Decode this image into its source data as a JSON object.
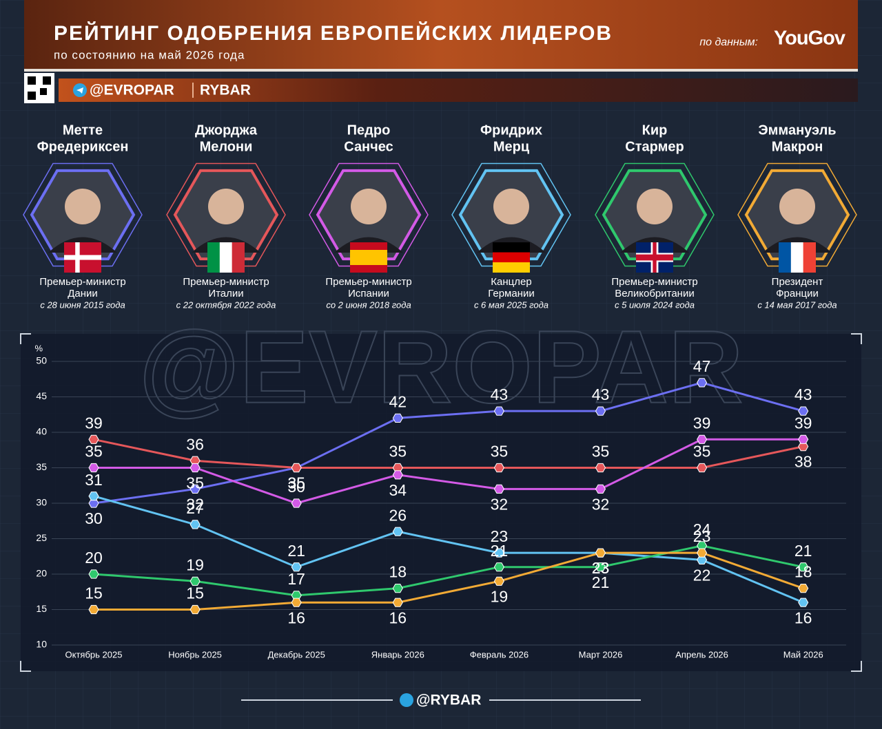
{
  "header": {
    "title": "РЕЙТИНГ ОДОБРЕНИЯ ЕВРОПЕЙСКИХ ЛИДЕРОВ",
    "subtitle": "по состоянию на май 2026 года",
    "source_prefix": "по данным:",
    "source": "YouGov",
    "channel": "@EVROPAR",
    "brand": "RYBAR"
  },
  "leaders": [
    {
      "name": [
        "Метте",
        "Фредериксен"
      ],
      "role": [
        "Премьер-министр",
        "Дании"
      ],
      "since": "с 28 июня 2015 года"
    },
    {
      "name": [
        "Джорджа",
        "Мелони"
      ],
      "role": [
        "Премьер-министр",
        "Италии"
      ],
      "since": "с 22 октября 2022 года"
    },
    {
      "name": [
        "Педро",
        "Санчес"
      ],
      "role": [
        "Премьер-министр",
        "Испании"
      ],
      "since": "со 2 июня 2018 года"
    },
    {
      "name": [
        "Фридрих",
        "Мерц"
      ],
      "role": [
        "Канцлер",
        "Германии"
      ],
      "since": "с 6 мая 2025 года"
    },
    {
      "name": [
        "Кир",
        "Стармер"
      ],
      "role": [
        "Премьер-министр",
        "Великобритании"
      ],
      "since": "с 5 июля 2024 года"
    },
    {
      "name": [
        "Эммануэль",
        "Макрон"
      ],
      "role": [
        "Президент",
        "Франции"
      ],
      "since": "с 14 мая 2017 года"
    }
  ],
  "chart_data": {
    "type": "line",
    "watermark": "@EVROPAR",
    "y_label": "%",
    "categories": [
      "Октябрь 2025",
      "Ноябрь 2025",
      "Декабрь 2025",
      "Январь 2026",
      "Февраль 2026",
      "Март 2026",
      "Апрель 2026",
      "Май 2026"
    ],
    "series": [
      {
        "color": "#6c6ff2",
        "values": [
          30,
          32,
          35,
          42,
          43,
          43,
          47,
          43
        ]
      },
      {
        "color": "#e5575a",
        "values": [
          39,
          36,
          35,
          35,
          35,
          35,
          35,
          38
        ]
      },
      {
        "color": "#d35ae6",
        "values": [
          35,
          35,
          30,
          34,
          32,
          32,
          39,
          39
        ]
      },
      {
        "color": "#62c3f2",
        "values": [
          31,
          27,
          21,
          26,
          23,
          23,
          22,
          16
        ]
      },
      {
        "color": "#2fc86d",
        "values": [
          20,
          19,
          17,
          18,
          21,
          21,
          24,
          21
        ]
      },
      {
        "color": "#f2aa35",
        "values": [
          15,
          15,
          16,
          16,
          19,
          23,
          23,
          18
        ]
      }
    ],
    "ylim": [
      10,
      50
    ],
    "yticks": [
      10,
      15,
      20,
      25,
      30,
      35,
      40,
      45,
      50
    ],
    "grid": true
  },
  "footer": "@RYBAR"
}
